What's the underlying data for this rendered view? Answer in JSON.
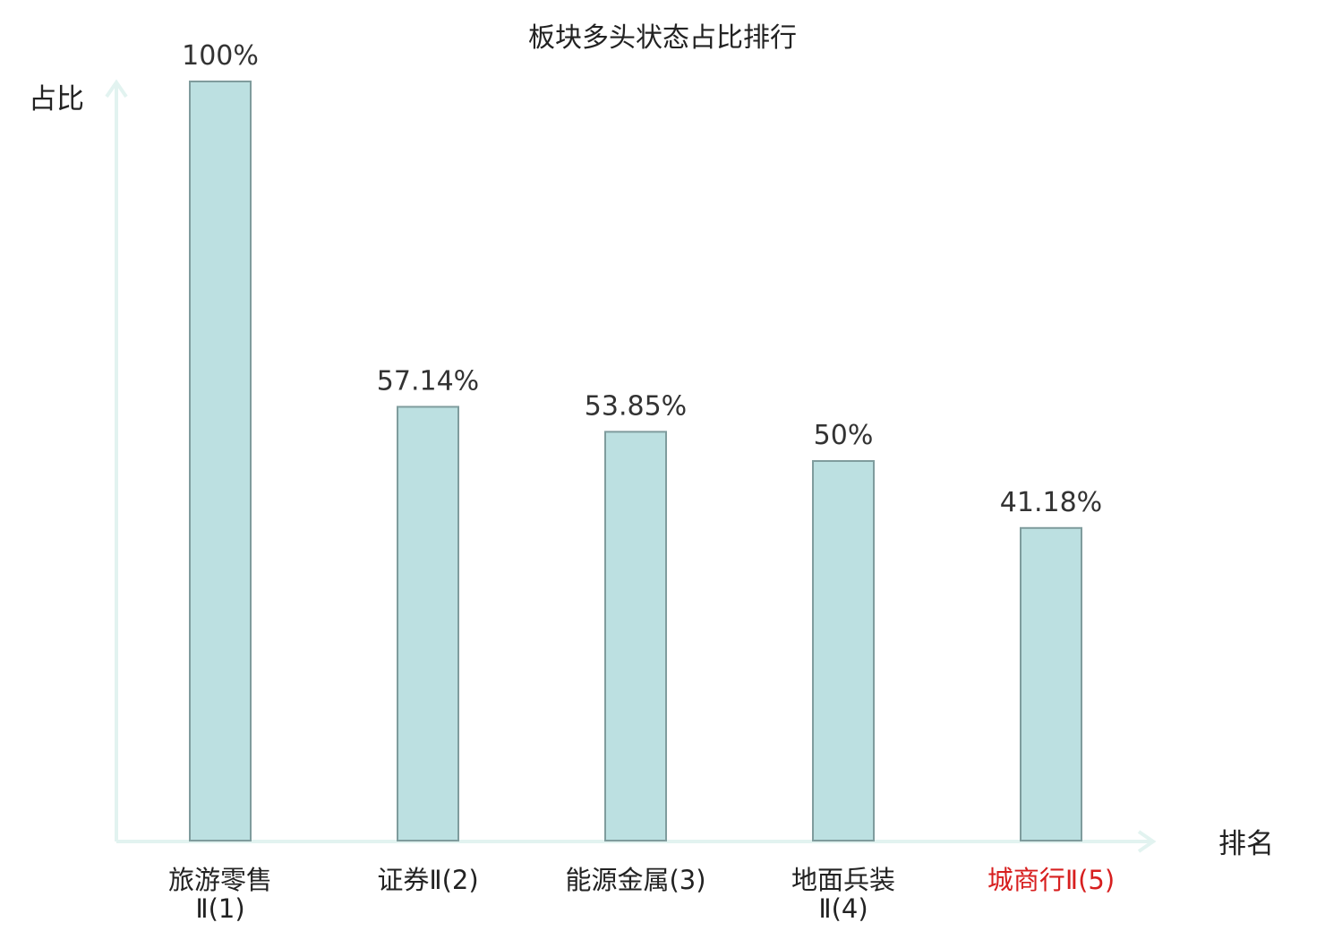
{
  "chart_data": {
    "type": "bar",
    "title": "板块多头状态占比排行",
    "ylabel": "占比",
    "xlabel": "排名",
    "ylim": [
      0,
      100
    ],
    "grid": false,
    "categories": [
      {
        "lines": [
          "旅游零售",
          "Ⅱ(1)"
        ],
        "highlight": false
      },
      {
        "lines": [
          "证券Ⅱ(2)"
        ],
        "highlight": false
      },
      {
        "lines": [
          "能源金属(3)"
        ],
        "highlight": false
      },
      {
        "lines": [
          "地面兵装",
          "Ⅱ(4)"
        ],
        "highlight": false
      },
      {
        "lines": [
          "城商行Ⅱ(5)"
        ],
        "highlight": true
      }
    ],
    "values": [
      100,
      57.14,
      53.85,
      50,
      41.18
    ],
    "value_labels": [
      "100%",
      "57.14%",
      "53.85%",
      "50%",
      "41.18%"
    ]
  },
  "colors": {
    "bar_fill": "#bce0e1",
    "bar_stroke": "#7f9c9d",
    "axis": "#e2f3f0",
    "text": "#222222",
    "highlight_text": "#d71f1f"
  }
}
